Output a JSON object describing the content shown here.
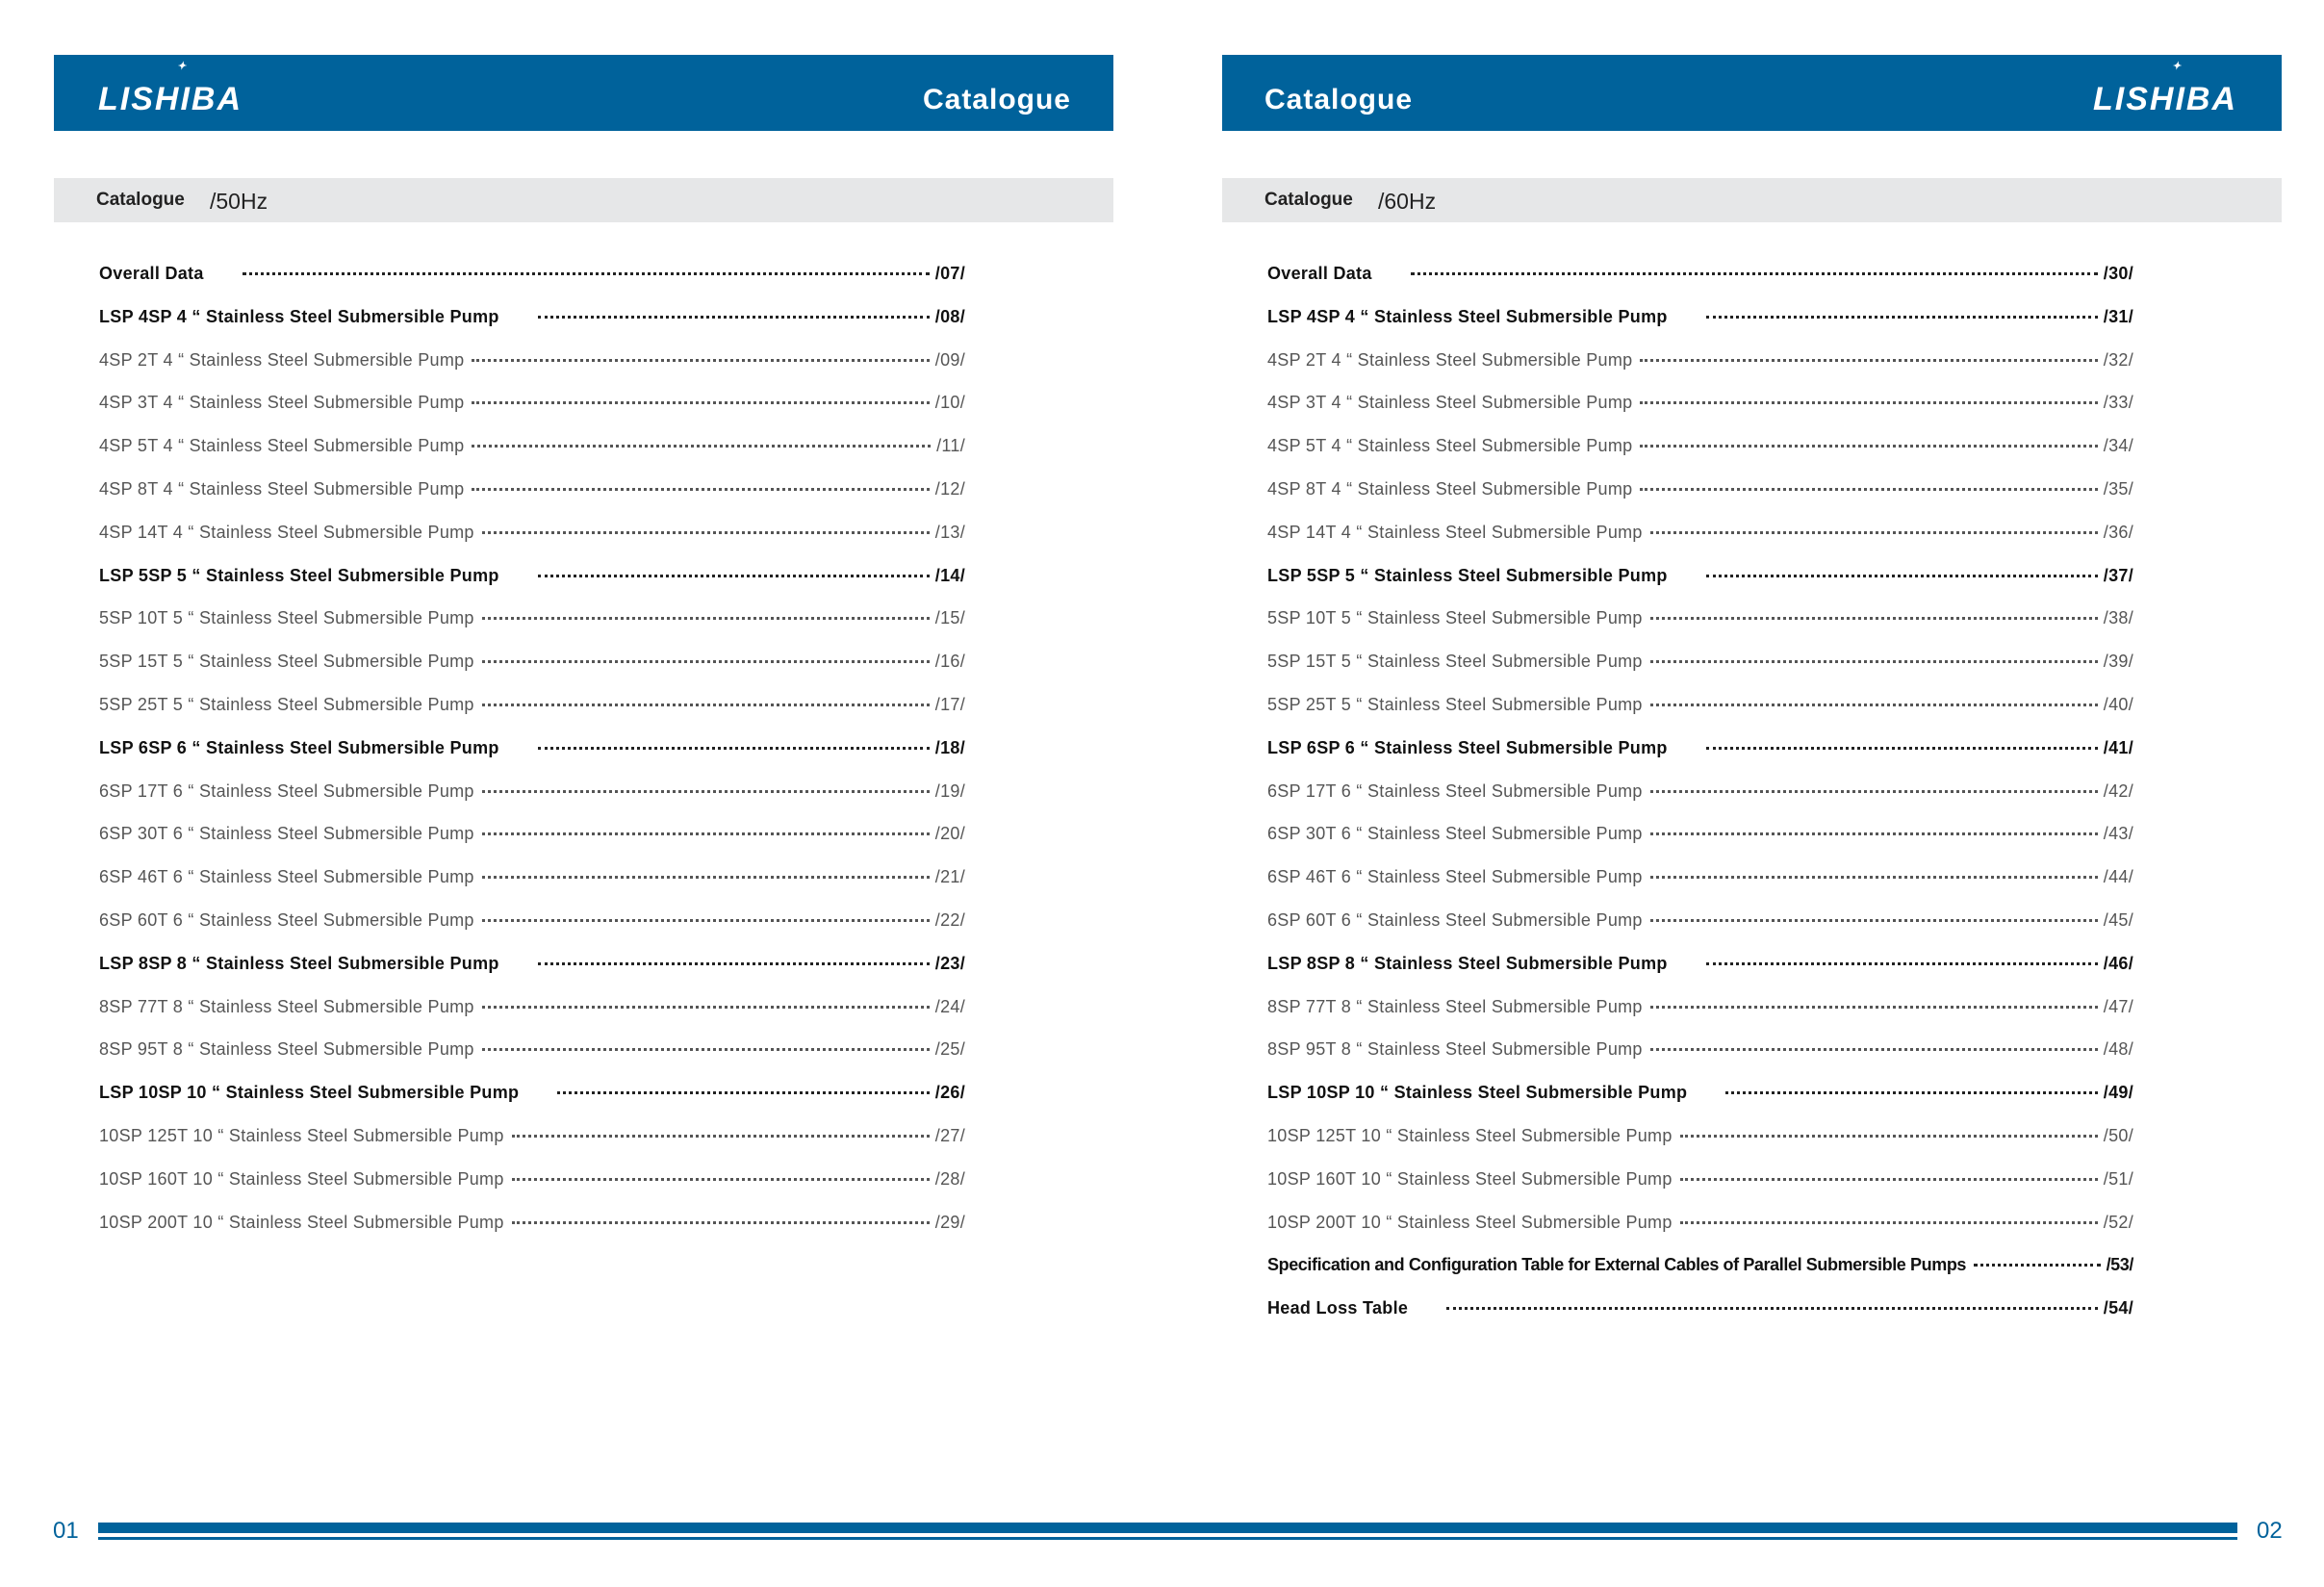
{
  "brand": {
    "logo": "LISHIBA",
    "color": "#00629b"
  },
  "left_page": {
    "header_title": "Catalogue",
    "section_label": "Catalogue",
    "section_freq": "/50Hz",
    "page_number": "01",
    "entries": [
      {
        "name": "Overall Data",
        "page": "/07/",
        "bold": true
      },
      {
        "name": "LSP 4SP 4 “ Stainless Steel Submersible Pump",
        "page": "/08/",
        "bold": true
      },
      {
        "name": "4SP 2T 4 “ Stainless Steel Submersible Pump",
        "page": "/09/",
        "bold": false
      },
      {
        "name": "4SP 3T 4 “ Stainless Steel Submersible Pump",
        "page": "/10/",
        "bold": false
      },
      {
        "name": "4SP 5T 4 “ Stainless Steel Submersible Pump",
        "page": "/11/",
        "bold": false
      },
      {
        "name": "4SP 8T 4 “ Stainless Steel Submersible Pump",
        "page": "/12/",
        "bold": false
      },
      {
        "name": "4SP 14T 4 “ Stainless Steel Submersible Pump",
        "page": "/13/",
        "bold": false
      },
      {
        "name": "LSP 5SP 5 “ Stainless Steel Submersible Pump",
        "page": "/14/",
        "bold": true
      },
      {
        "name": "5SP 10T 5 “ Stainless Steel Submersible Pump",
        "page": "/15/",
        "bold": false
      },
      {
        "name": "5SP 15T 5 “ Stainless Steel Submersible Pump",
        "page": "/16/",
        "bold": false
      },
      {
        "name": "5SP 25T 5 “ Stainless Steel Submersible Pump",
        "page": "/17/",
        "bold": false
      },
      {
        "name": "LSP 6SP 6 “ Stainless Steel Submersible Pump",
        "page": "/18/",
        "bold": true
      },
      {
        "name": "6SP 17T 6 “ Stainless Steel Submersible Pump",
        "page": "/19/",
        "bold": false
      },
      {
        "name": "6SP 30T 6 “ Stainless Steel Submersible Pump",
        "page": "/20/",
        "bold": false
      },
      {
        "name": "6SP 46T 6 “ Stainless Steel Submersible Pump",
        "page": "/21/",
        "bold": false
      },
      {
        "name": "6SP 60T 6 “ Stainless Steel Submersible Pump",
        "page": "/22/",
        "bold": false
      },
      {
        "name": "LSP 8SP 8 “ Stainless Steel Submersible Pump",
        "page": "/23/",
        "bold": true
      },
      {
        "name": "8SP 77T 8 “ Stainless Steel Submersible Pump",
        "page": "/24/",
        "bold": false
      },
      {
        "name": "8SP 95T 8 “ Stainless Steel Submersible Pump",
        "page": "/25/",
        "bold": false
      },
      {
        "name": "LSP 10SP 10 “ Stainless Steel Submersible Pump",
        "page": "/26/",
        "bold": true
      },
      {
        "name": "10SP 125T 10 “ Stainless Steel Submersible Pump",
        "page": "/27/",
        "bold": false
      },
      {
        "name": "10SP 160T 10 “ Stainless Steel Submersible Pump",
        "page": "/28/",
        "bold": false
      },
      {
        "name": "10SP 200T 10 “ Stainless Steel Submersible Pump",
        "page": "/29/",
        "bold": false
      }
    ]
  },
  "right_page": {
    "header_title": "Catalogue",
    "section_label": "Catalogue",
    "section_freq": "/60Hz",
    "page_number": "02",
    "entries": [
      {
        "name": "Overall Data",
        "page": "/30/",
        "bold": true
      },
      {
        "name": "LSP 4SP 4 “ Stainless Steel Submersible Pump",
        "page": "/31/",
        "bold": true
      },
      {
        "name": "4SP 2T 4 “ Stainless Steel Submersible Pump",
        "page": "/32/",
        "bold": false
      },
      {
        "name": "4SP 3T 4 “ Stainless Steel Submersible Pump",
        "page": "/33/",
        "bold": false
      },
      {
        "name": "4SP 5T 4 “ Stainless Steel Submersible Pump",
        "page": "/34/",
        "bold": false
      },
      {
        "name": "4SP 8T 4 “ Stainless Steel Submersible Pump",
        "page": "/35/",
        "bold": false
      },
      {
        "name": "4SP 14T 4 “ Stainless Steel Submersible Pump",
        "page": "/36/",
        "bold": false
      },
      {
        "name": "LSP 5SP 5 “ Stainless Steel Submersible Pump",
        "page": "/37/",
        "bold": true
      },
      {
        "name": "5SP 10T 5 “ Stainless Steel Submersible Pump",
        "page": "/38/",
        "bold": false
      },
      {
        "name": "5SP 15T 5 “ Stainless Steel Submersible Pump",
        "page": "/39/",
        "bold": false
      },
      {
        "name": "5SP 25T 5 “ Stainless Steel Submersible Pump",
        "page": "/40/",
        "bold": false
      },
      {
        "name": "LSP 6SP 6 “ Stainless Steel Submersible Pump",
        "page": "/41/",
        "bold": true
      },
      {
        "name": "6SP 17T 6 “ Stainless Steel Submersible Pump",
        "page": "/42/",
        "bold": false
      },
      {
        "name": "6SP 30T 6 “ Stainless Steel Submersible Pump",
        "page": "/43/",
        "bold": false
      },
      {
        "name": "6SP 46T 6 “ Stainless Steel Submersible Pump",
        "page": "/44/",
        "bold": false
      },
      {
        "name": "6SP 60T 6 “ Stainless Steel Submersible Pump",
        "page": "/45/",
        "bold": false
      },
      {
        "name": "LSP 8SP 8 “ Stainless Steel Submersible Pump",
        "page": "/46/",
        "bold": true
      },
      {
        "name": "8SP 77T 8 “ Stainless Steel Submersible Pump",
        "page": "/47/",
        "bold": false
      },
      {
        "name": "8SP 95T 8 “ Stainless Steel Submersible Pump",
        "page": "/48/",
        "bold": false
      },
      {
        "name": "LSP 10SP 10 “ Stainless Steel Submersible Pump",
        "page": "/49/",
        "bold": true
      },
      {
        "name": "10SP 125T 10 “ Stainless Steel Submersible Pump",
        "page": "/50/",
        "bold": false
      },
      {
        "name": "10SP 160T 10 “ Stainless Steel Submersible Pump",
        "page": "/51/",
        "bold": false
      },
      {
        "name": "10SP 200T 10 “ Stainless Steel Submersible Pump",
        "page": "/52/",
        "bold": false
      },
      {
        "name": "Specification and Configuration Table for External Cables of Parallel Submersible Pumps",
        "page": "/53/",
        "bold": true
      },
      {
        "name": "Head Loss Table",
        "page": "/54/",
        "bold": true
      }
    ]
  }
}
